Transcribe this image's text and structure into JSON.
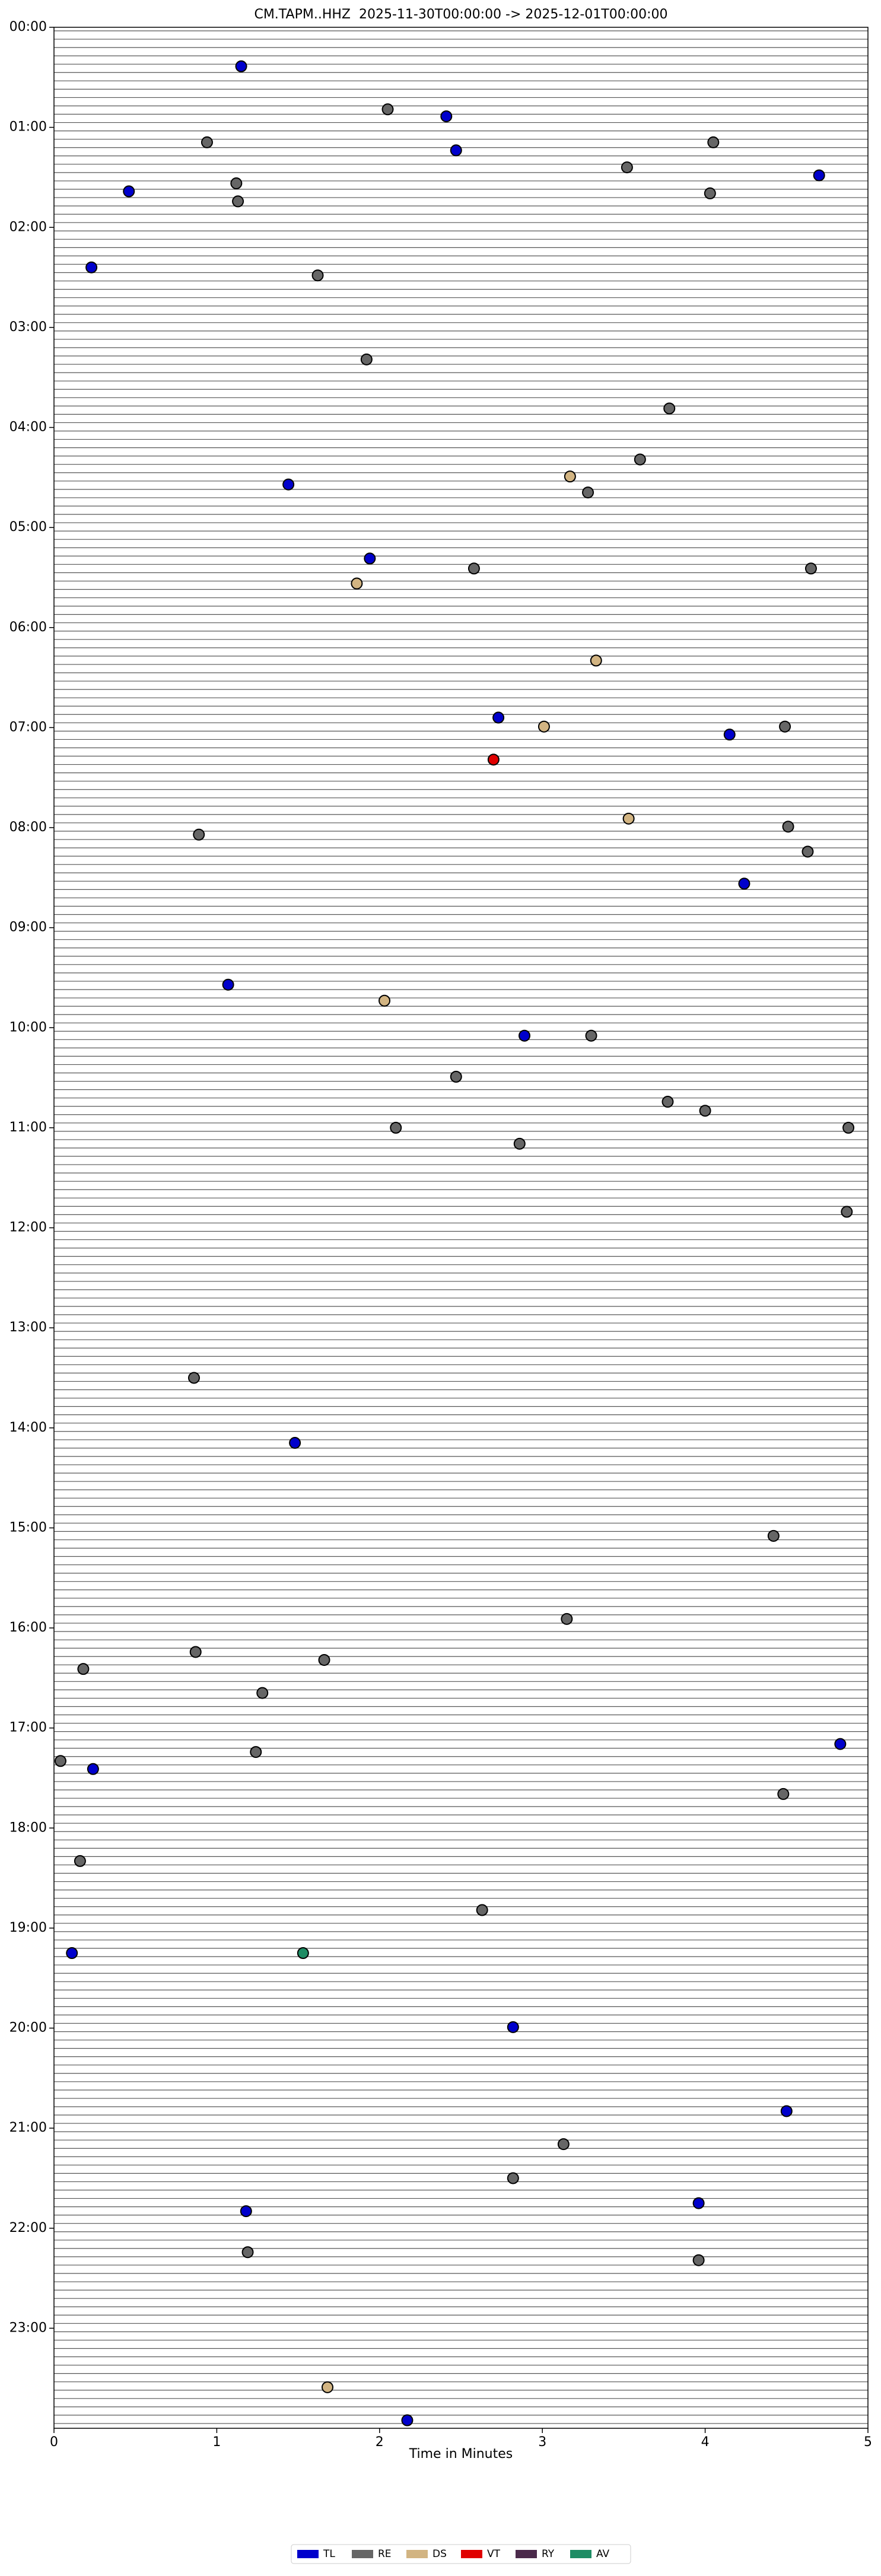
{
  "chart_data": {
    "type": "scatter",
    "title": "CM.TAPM..HHZ  2025-11-30T00:00:00 -> 2025-12-01T00:00:00",
    "x_label": "Time in Minutes",
    "xlim": [
      0,
      5
    ],
    "xticks": [
      0,
      1,
      2,
      3,
      4,
      5
    ],
    "ylim": [
      24,
      0
    ],
    "yticks": [
      {
        "value": 0,
        "label": "00:00"
      },
      {
        "value": 1,
        "label": "01:00"
      },
      {
        "value": 2,
        "label": "02:00"
      },
      {
        "value": 3,
        "label": "03:00"
      },
      {
        "value": 4,
        "label": "04:00"
      },
      {
        "value": 5,
        "label": "05:00"
      },
      {
        "value": 6,
        "label": "06:00"
      },
      {
        "value": 7,
        "label": "07:00"
      },
      {
        "value": 8,
        "label": "08:00"
      },
      {
        "value": 9,
        "label": "09:00"
      },
      {
        "value": 10,
        "label": "10:00"
      },
      {
        "value": 11,
        "label": "11:00"
      },
      {
        "value": 12,
        "label": "12:00"
      },
      {
        "value": 13,
        "label": "13:00"
      },
      {
        "value": 14,
        "label": "14:00"
      },
      {
        "value": 15,
        "label": "15:00"
      },
      {
        "value": 16,
        "label": "16:00"
      },
      {
        "value": 17,
        "label": "17:00"
      },
      {
        "value": 18,
        "label": "18:00"
      },
      {
        "value": 19,
        "label": "19:00"
      },
      {
        "value": 20,
        "label": "20:00"
      },
      {
        "value": 21,
        "label": "21:00"
      },
      {
        "value": 22,
        "label": "22:00"
      },
      {
        "value": 23,
        "label": "23:00"
      }
    ],
    "legend": "bottom",
    "series": [
      {
        "name": "TL",
        "color": "#0000cc",
        "x": [
          1.15,
          2.41,
          2.47,
          0.46,
          4.7,
          0.23,
          1.44,
          1.94,
          2.73,
          4.15,
          4.24,
          1.07,
          2.89,
          1.48,
          0.24,
          4.83,
          0.11,
          2.82,
          4.5,
          1.18,
          3.96,
          2.17
        ],
        "values": [
          0.39,
          0.89,
          1.23,
          1.64,
          1.48,
          2.4,
          4.57,
          5.31,
          6.9,
          7.07,
          8.56,
          9.57,
          10.08,
          14.15,
          17.41,
          17.16,
          19.25,
          19.99,
          20.83,
          21.83,
          21.75,
          23.92
        ]
      },
      {
        "name": "RE",
        "color": "#666666",
        "x": [
          2.05,
          0.94,
          4.05,
          1.12,
          1.13,
          3.52,
          4.03,
          1.62,
          1.92,
          3.78,
          3.6,
          3.28,
          2.58,
          4.65,
          4.49,
          4.51,
          4.63,
          0.89,
          3.3,
          2.47,
          3.77,
          4.0,
          2.1,
          2.86,
          4.88,
          4.87,
          0.86,
          4.42,
          3.15,
          1.66,
          0.87,
          0.18,
          1.28,
          0.04,
          1.24,
          4.48,
          0.16,
          2.63,
          3.13,
          2.82,
          1.19,
          3.96
        ],
        "values": [
          0.82,
          1.15,
          1.15,
          1.56,
          1.74,
          1.4,
          1.66,
          2.48,
          3.32,
          3.81,
          4.32,
          4.65,
          5.41,
          5.41,
          6.99,
          7.99,
          8.24,
          8.07,
          10.08,
          10.49,
          10.74,
          10.83,
          11.0,
          11.16,
          11.0,
          11.84,
          13.5,
          15.08,
          15.91,
          16.32,
          16.24,
          16.41,
          16.65,
          17.33,
          17.24,
          17.66,
          18.33,
          18.82,
          21.16,
          21.5,
          22.24,
          22.32
        ]
      },
      {
        "name": "DS",
        "color": "#d2b482",
        "x": [
          3.17,
          1.86,
          3.33,
          3.01,
          3.53,
          2.03,
          1.68
        ],
        "values": [
          4.49,
          5.56,
          6.33,
          6.99,
          7.91,
          9.73,
          23.59
        ]
      },
      {
        "name": "VT",
        "color": "#e00000",
        "x": [
          2.7
        ],
        "values": [
          7.32
        ]
      },
      {
        "name": "RY",
        "color": "#4b2a4b",
        "x": [],
        "values": []
      },
      {
        "name": "AV",
        "color": "#1e8c64",
        "x": [
          1.53
        ],
        "values": [
          19.25
        ]
      }
    ]
  }
}
